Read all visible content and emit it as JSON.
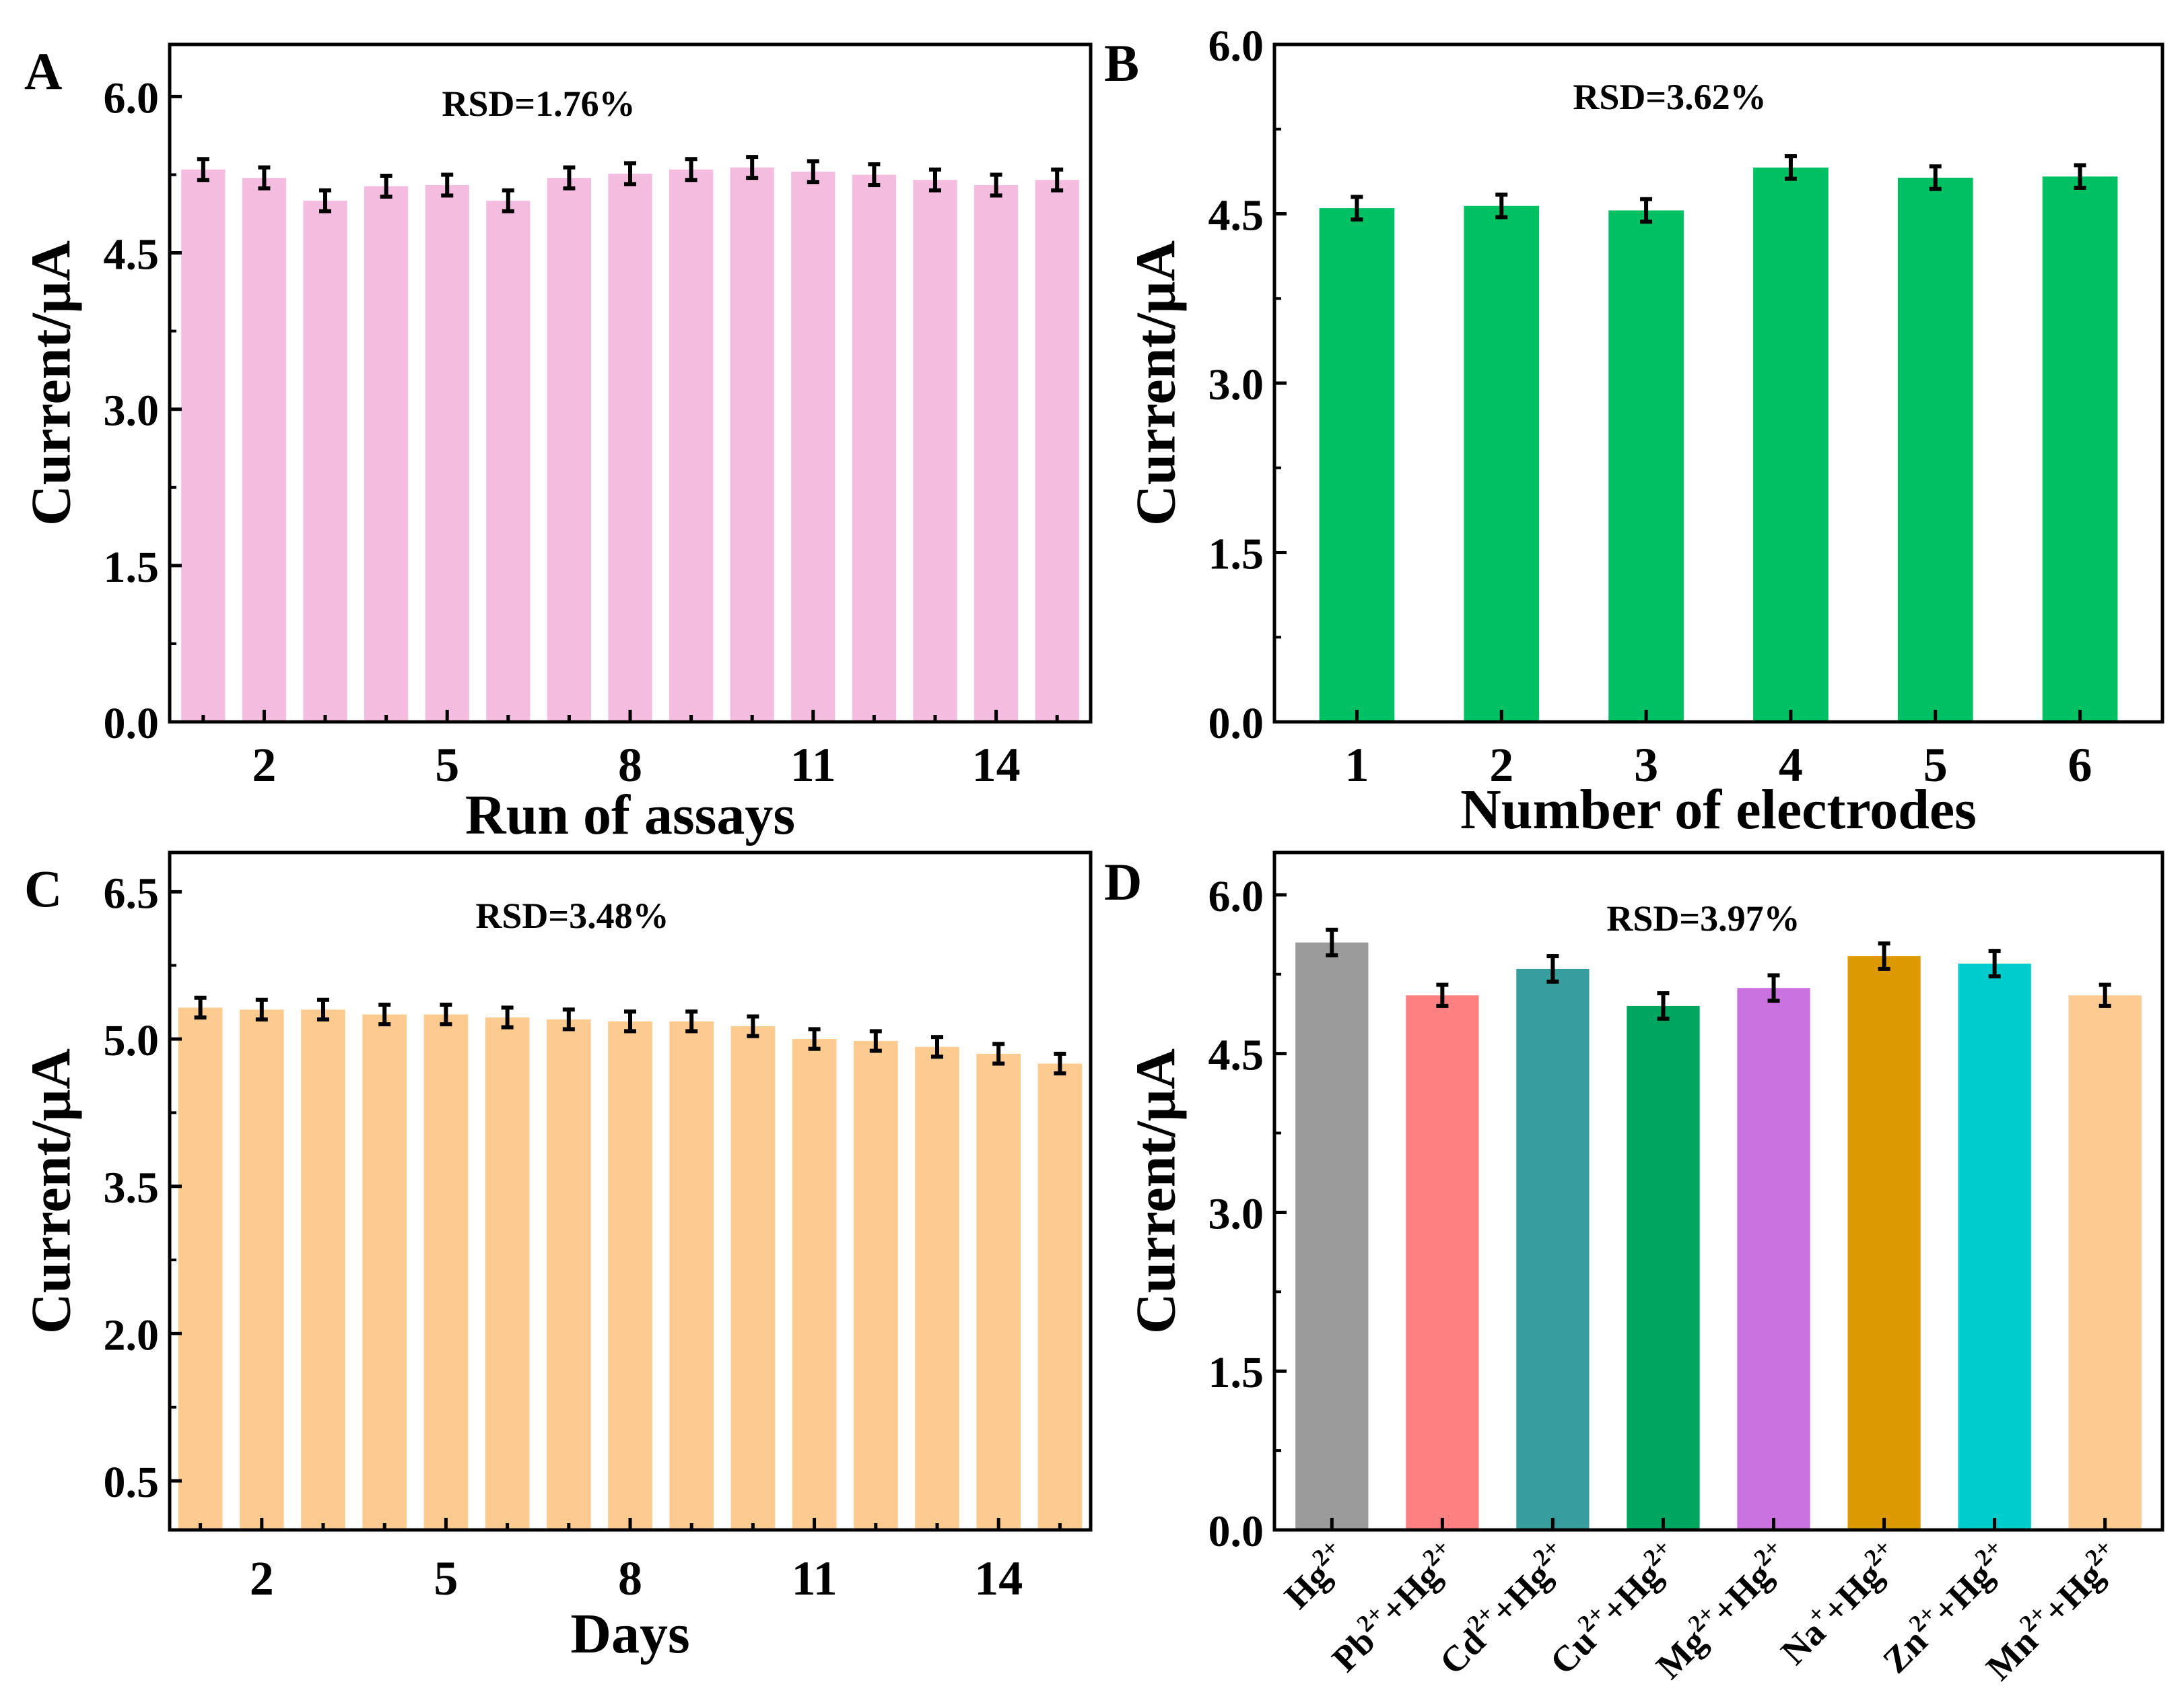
{
  "colors": {
    "A": "#f4bde0",
    "B": "#00c064",
    "C": "#fdcb90",
    "D": [
      "#9b9b9b",
      "#ff8080",
      "#379d9d",
      "#00a660",
      "#c972e0",
      "#dd9a00",
      "#00cccd",
      "#fdcb90"
    ],
    "axis": "#000000",
    "error": "#000000"
  },
  "chart_data": [
    {
      "panel": "A",
      "type": "bar",
      "title": "",
      "annotation": "RSD=1.76%",
      "xlabel": "Run of assays",
      "ylabel": "Current/μA",
      "ylim": [
        0,
        6.5
      ],
      "yticks": [
        "0.0",
        "1.5",
        "3.0",
        "4.5",
        "6.0"
      ],
      "ytick_values": [
        0,
        1.5,
        3.0,
        4.5,
        6.0
      ],
      "xticks_shown": [
        "2",
        "5",
        "8",
        "11",
        "14"
      ],
      "categories": [
        "1",
        "2",
        "3",
        "4",
        "5",
        "6",
        "7",
        "8",
        "9",
        "10",
        "11",
        "12",
        "13",
        "14",
        "15"
      ],
      "values": [
        5.3,
        5.22,
        5.0,
        5.14,
        5.15,
        5.0,
        5.22,
        5.26,
        5.3,
        5.32,
        5.28,
        5.25,
        5.2,
        5.15,
        5.2
      ],
      "errors": [
        0.1,
        0.1,
        0.1,
        0.1,
        0.1,
        0.1,
        0.1,
        0.1,
        0.1,
        0.1,
        0.1,
        0.1,
        0.1,
        0.1,
        0.1
      ]
    },
    {
      "panel": "B",
      "type": "bar",
      "title": "",
      "annotation": "RSD=3.62%",
      "xlabel": "Number of electrodes",
      "ylabel": "Current/μA",
      "ylim": [
        0,
        6.0
      ],
      "yticks": [
        "0.0",
        "1.5",
        "3.0",
        "4.5",
        "6.0"
      ],
      "ytick_values": [
        0,
        1.5,
        3.0,
        4.5,
        6.0
      ],
      "xticks_shown": [
        "1",
        "2",
        "3",
        "4",
        "5",
        "6"
      ],
      "categories": [
        "1",
        "2",
        "3",
        "4",
        "5",
        "6"
      ],
      "values": [
        4.55,
        4.57,
        4.53,
        4.91,
        4.82,
        4.83
      ],
      "errors": [
        0.1,
        0.1,
        0.1,
        0.1,
        0.1,
        0.1
      ]
    },
    {
      "panel": "C",
      "type": "bar",
      "title": "",
      "annotation": "RSD=3.48%",
      "xlabel": "Days",
      "ylabel": "Current/μA",
      "ylim": [
        0,
        6.9
      ],
      "yticks": [
        "0.5",
        "2.0",
        "3.5",
        "5.0",
        "6.5"
      ],
      "ytick_values": [
        0.5,
        2.0,
        3.5,
        5.0,
        6.5
      ],
      "xticks_shown": [
        "2",
        "5",
        "8",
        "11",
        "14"
      ],
      "categories": [
        "1",
        "2",
        "3",
        "4",
        "5",
        "6",
        "7",
        "8",
        "9",
        "10",
        "11",
        "12",
        "13",
        "14",
        "15"
      ],
      "values": [
        5.32,
        5.3,
        5.3,
        5.25,
        5.25,
        5.22,
        5.2,
        5.18,
        5.18,
        5.13,
        5.0,
        4.98,
        4.92,
        4.85,
        4.75
      ],
      "errors": [
        0.1,
        0.1,
        0.1,
        0.1,
        0.1,
        0.1,
        0.1,
        0.1,
        0.1,
        0.1,
        0.1,
        0.1,
        0.1,
        0.1,
        0.1
      ]
    },
    {
      "panel": "D",
      "type": "bar",
      "title": "",
      "annotation": "RSD=3.97%",
      "xlabel": "",
      "ylabel": "Current/μA",
      "ylim": [
        0,
        6.4
      ],
      "yticks": [
        "0.0",
        "1.5",
        "3.0",
        "4.5",
        "6.0"
      ],
      "ytick_values": [
        0,
        1.5,
        3.0,
        4.5,
        6.0
      ],
      "categories": [
        {
          "base": "Hg",
          "sup": "2+",
          "suffix": "",
          "suffix_sup": ""
        },
        {
          "base": "Pb",
          "sup": "2+",
          "suffix": "+Hg",
          "suffix_sup": "2+"
        },
        {
          "base": "Cd",
          "sup": "2+",
          "suffix": "+Hg",
          "suffix_sup": "2+"
        },
        {
          "base": "Cu",
          "sup": "2+",
          "suffix": "+Hg",
          "suffix_sup": "2+"
        },
        {
          "base": "Mg",
          "sup": "2+",
          "suffix": "+Hg",
          "suffix_sup": "2+"
        },
        {
          "base": "Na",
          "sup": "+",
          "suffix": "+Hg",
          "suffix_sup": "2+"
        },
        {
          "base": "Zn",
          "sup": "2+",
          "suffix": "+Hg",
          "suffix_sup": "2+"
        },
        {
          "base": "Mn",
          "sup": "2+",
          "suffix": "+Hg",
          "suffix_sup": "2+"
        }
      ],
      "values": [
        5.55,
        5.05,
        5.3,
        4.95,
        5.12,
        5.42,
        5.35,
        5.05
      ],
      "errors": [
        0.12,
        0.1,
        0.12,
        0.12,
        0.12,
        0.12,
        0.12,
        0.1
      ]
    }
  ]
}
